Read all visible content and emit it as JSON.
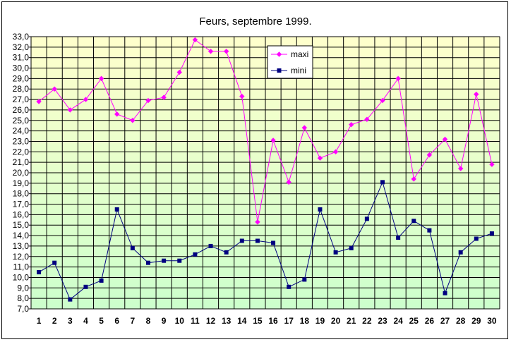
{
  "chart_data": {
    "type": "line",
    "title": "Feurs, septembre 1999.",
    "xlabel": "",
    "ylabel": "",
    "categories": [
      "1",
      "2",
      "3",
      "4",
      "5",
      "6",
      "7",
      "8",
      "9",
      "10",
      "11",
      "12",
      "13",
      "14",
      "15",
      "16",
      "17",
      "18",
      "19",
      "20",
      "21",
      "22",
      "23",
      "24",
      "25",
      "26",
      "27",
      "28",
      "29",
      "30"
    ],
    "ylim": [
      7.0,
      33.0
    ],
    "ytick_step": 1.0,
    "ytick_labels": [
      "7,0",
      "8,0",
      "9,0",
      "10,0",
      "11,0",
      "12,0",
      "13,0",
      "14,0",
      "15,0",
      "16,0",
      "17,0",
      "18,0",
      "19,0",
      "20,0",
      "21,0",
      "22,0",
      "23,0",
      "24,0",
      "25,0",
      "26,0",
      "27,0",
      "28,0",
      "29,0",
      "30,0",
      "31,0",
      "32,0",
      "33,0"
    ],
    "grid": true,
    "legend_position": "top-center",
    "background_gradient": [
      "#ffffcc",
      "#ccffcc"
    ],
    "series": [
      {
        "name": "maxi",
        "color": "#ff00ff",
        "marker": "diamond",
        "values": [
          26.8,
          28.0,
          26.0,
          27.0,
          29.0,
          25.6,
          25.0,
          26.9,
          27.2,
          29.6,
          32.7,
          31.6,
          31.6,
          27.3,
          15.3,
          23.1,
          19.1,
          24.3,
          21.4,
          22.0,
          24.6,
          25.1,
          26.9,
          29.0,
          19.4,
          21.7,
          23.2,
          20.4,
          27.5,
          20.8
        ]
      },
      {
        "name": "mini",
        "color": "#000080",
        "marker": "square",
        "values": [
          10.5,
          11.4,
          7.9,
          9.1,
          9.7,
          16.5,
          12.8,
          11.4,
          11.6,
          11.6,
          12.2,
          13.0,
          12.4,
          13.5,
          13.5,
          13.3,
          9.1,
          9.8,
          16.5,
          12.4,
          12.8,
          15.6,
          19.1,
          13.8,
          15.4,
          14.5,
          8.5,
          12.4,
          13.7,
          14.2
        ]
      }
    ]
  }
}
